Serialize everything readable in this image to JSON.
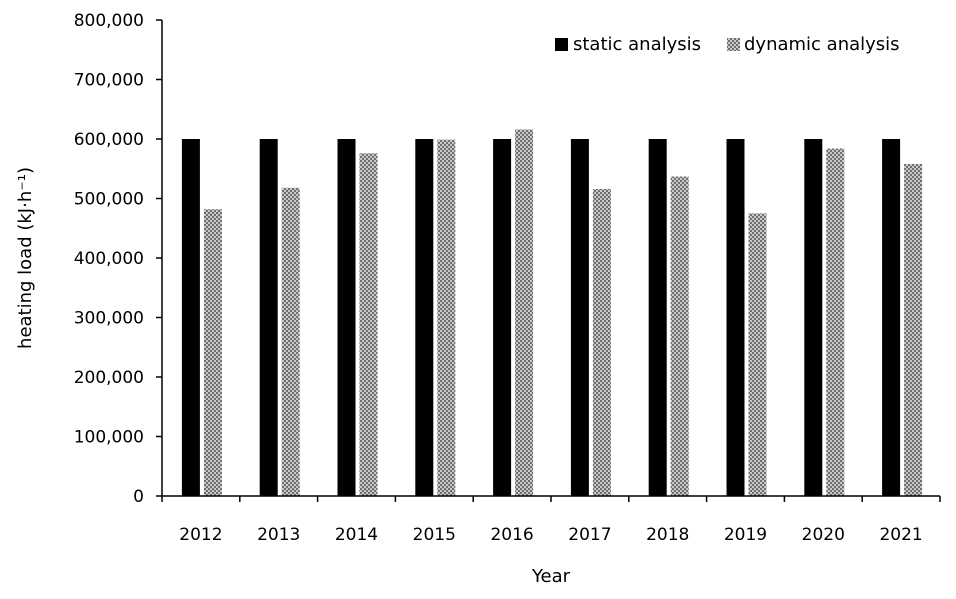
{
  "chart_data": {
    "type": "bar",
    "categories": [
      "2012",
      "2013",
      "2014",
      "2015",
      "2016",
      "2017",
      "2018",
      "2019",
      "2020",
      "2021"
    ],
    "series": [
      {
        "name": "static analysis",
        "values": [
          600000,
          600000,
          600000,
          600000,
          600000,
          600000,
          600000,
          600000,
          600000,
          600000
        ]
      },
      {
        "name": "dynamic analysis",
        "values": [
          482000,
          518000,
          576000,
          599000,
          616000,
          516000,
          537000,
          475000,
          584000,
          558000
        ]
      }
    ],
    "xlabel": "Year",
    "ylabel": "heating load (kJ·h⁻¹)",
    "ylim": [
      0,
      800000
    ],
    "yticks": [
      0,
      100000,
      200000,
      300000,
      400000,
      500000,
      600000,
      700000,
      800000
    ],
    "ytick_labels": [
      "0",
      "100,000",
      "200,000",
      "300,000",
      "400,000",
      "500,000",
      "600,000",
      "700,000",
      "800,000"
    ],
    "legend_position": "top-right",
    "grid": false,
    "colors": {
      "static analysis": "#000000",
      "dynamic analysis": "#9a9a9a"
    }
  }
}
